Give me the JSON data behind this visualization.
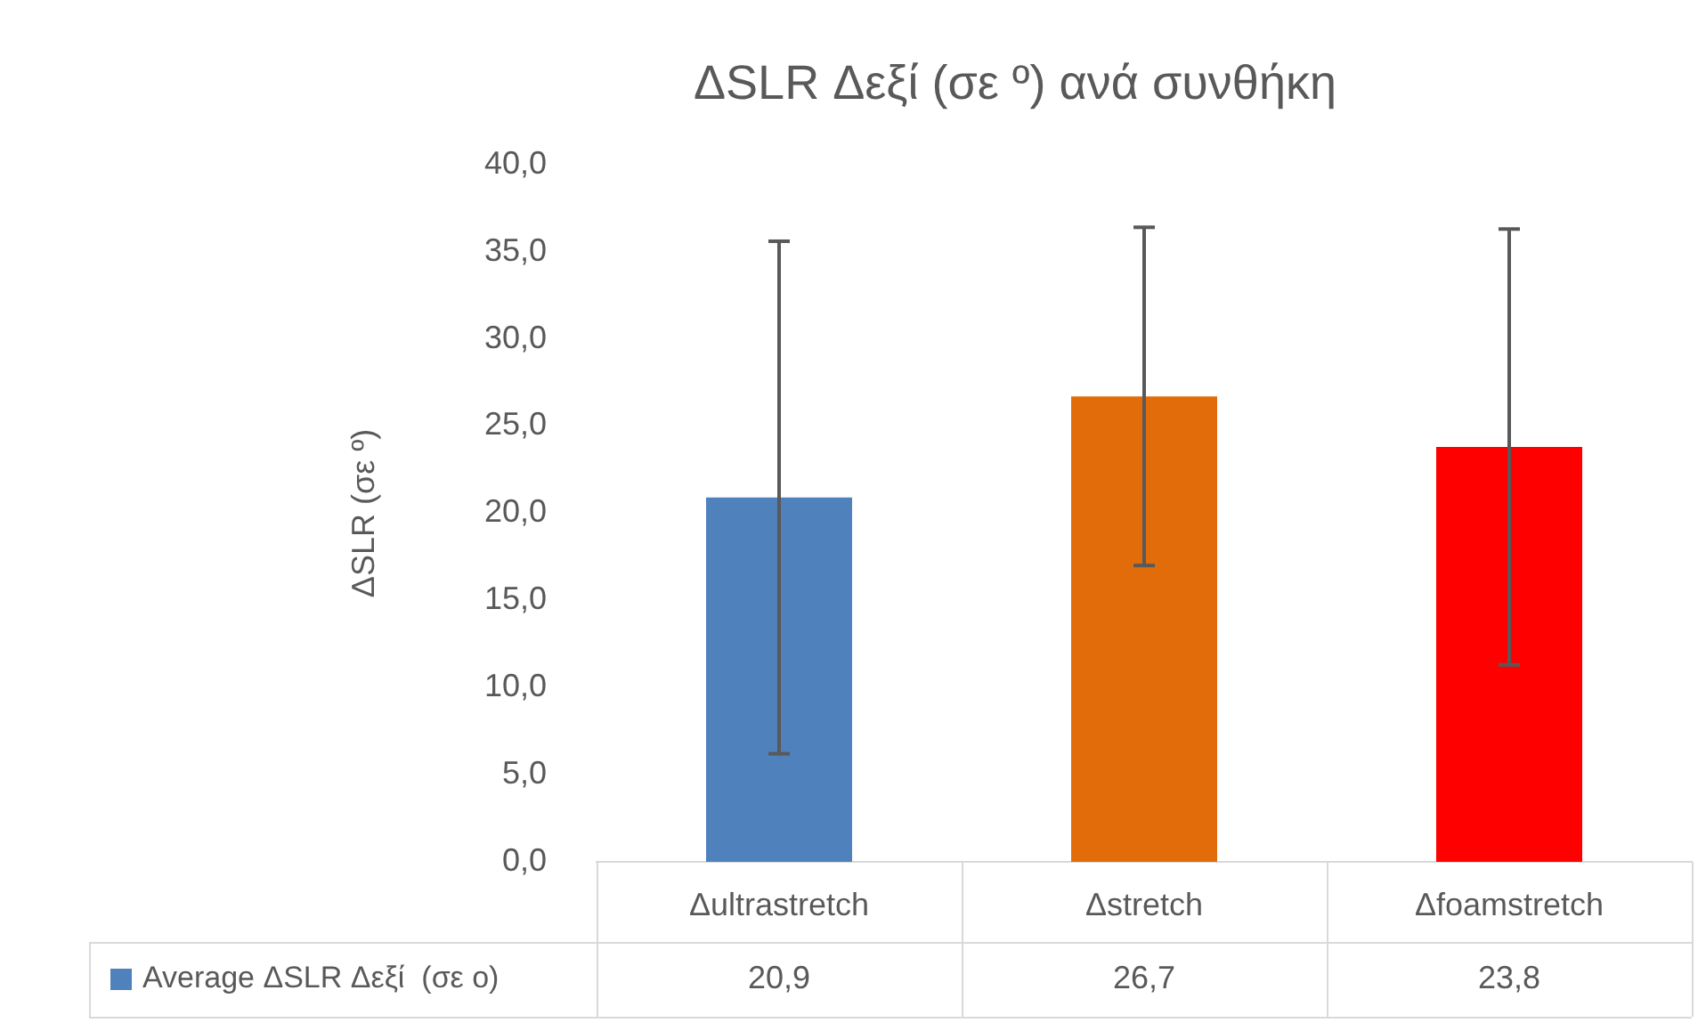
{
  "chart_data": {
    "type": "bar",
    "title": "ΔSLR Δεξί (σε º) ανά συνθήκη",
    "ylabel": "ΔSLR (σε º)",
    "categories": [
      "Δultrastretch",
      "Δstretch",
      "Δfoamstretch"
    ],
    "series": [
      {
        "name": "Average ΔSLR Δεξί  (σε ο)",
        "color": "#4f81bd",
        "colors": [
          "#4f81bd",
          "#e36c0a",
          "#ff0000"
        ],
        "values": [
          20.9,
          26.7,
          23.8
        ],
        "errors": [
          14.7,
          9.7,
          12.5
        ],
        "value_labels": [
          "20,9",
          "26,7",
          "23,8"
        ]
      }
    ],
    "ylim": [
      0,
      40
    ],
    "yticks": [
      {
        "value": 0,
        "label": "0,0"
      },
      {
        "value": 5,
        "label": "5,0"
      },
      {
        "value": 10,
        "label": "10,0"
      },
      {
        "value": 15,
        "label": "15,0"
      },
      {
        "value": 20,
        "label": "20,0"
      },
      {
        "value": 25,
        "label": "25,0"
      },
      {
        "value": 30,
        "label": "30,0"
      },
      {
        "value": 35,
        "label": "35,0"
      },
      {
        "value": 40,
        "label": "40,0"
      }
    ],
    "grid": false,
    "legend": "bottom left"
  }
}
